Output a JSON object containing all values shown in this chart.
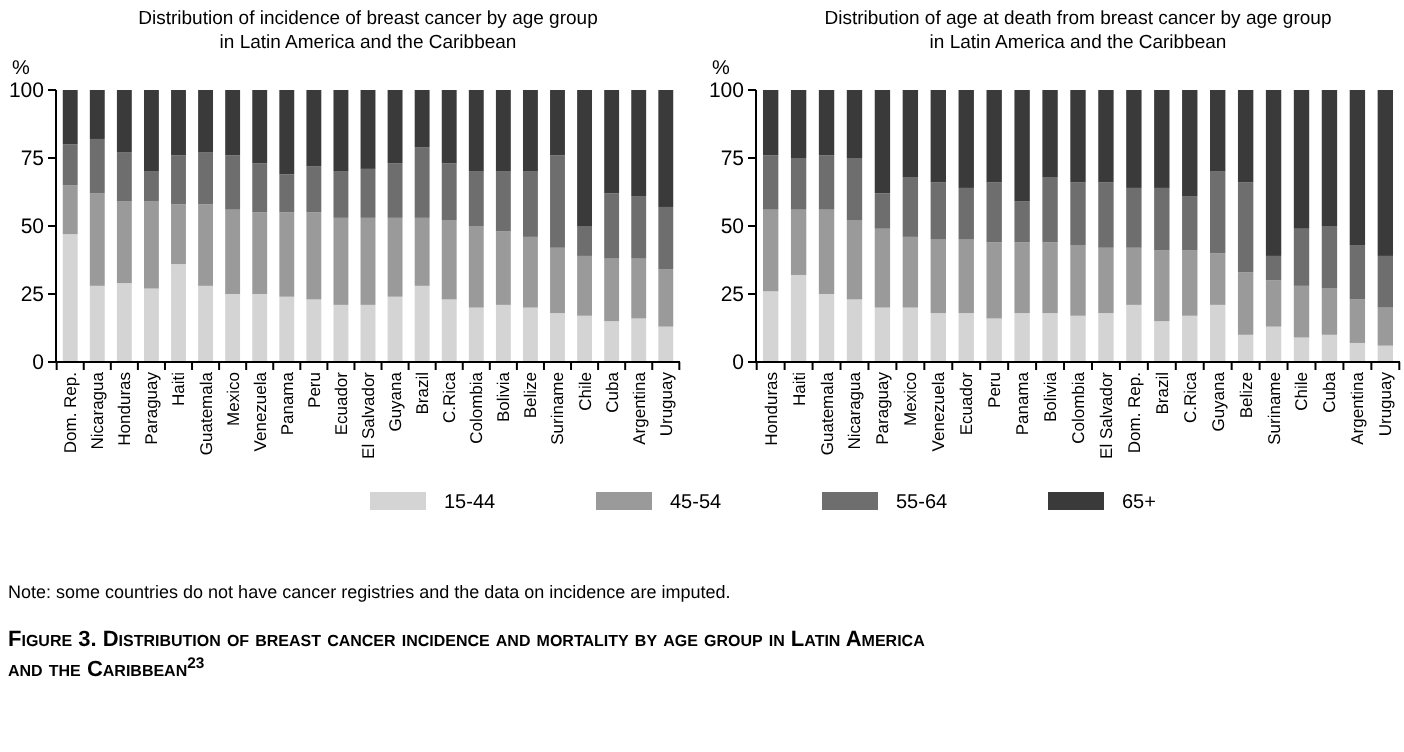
{
  "chart_data": [
    {
      "type": "bar",
      "stacked": true,
      "title": "Distribution of incidence of breast cancer by age group\nin Latin America and the Caribbean",
      "ylabel": "%",
      "ylim": [
        0,
        100
      ],
      "yticks": [
        0,
        25,
        50,
        75,
        100
      ],
      "legend": "bottom",
      "categories": [
        "Dom. Rep.",
        "Nicaragua",
        "Honduras",
        "Paraguay",
        "Haiti",
        "Guatemala",
        "Mexico",
        "Venezuela",
        "Panama",
        "Peru",
        "Ecuador",
        "El Salvador",
        "Guyana",
        "Brazil",
        "C.Rica",
        "Colombia",
        "Bolivia",
        "Belize",
        "Suriname",
        "Chile",
        "Cuba",
        "Argentina",
        "Uruguay"
      ],
      "series": [
        {
          "name": "15-44",
          "color": "#d4d4d4",
          "values": [
            47,
            28,
            29,
            27,
            36,
            28,
            25,
            25,
            24,
            23,
            21,
            21,
            24,
            28,
            23,
            20,
            21,
            20,
            18,
            17,
            15,
            16,
            13
          ]
        },
        {
          "name": "45-54",
          "color": "#9a9a9a",
          "values": [
            18,
            34,
            30,
            32,
            22,
            30,
            31,
            30,
            31,
            32,
            32,
            32,
            29,
            25,
            29,
            30,
            27,
            26,
            24,
            22,
            23,
            22,
            21
          ]
        },
        {
          "name": "55-64",
          "color": "#6e6e6e",
          "values": [
            15,
            20,
            18,
            11,
            18,
            19,
            20,
            18,
            14,
            17,
            17,
            18,
            20,
            26,
            21,
            20,
            22,
            24,
            34,
            11,
            24,
            23,
            23
          ]
        },
        {
          "name": "65+",
          "color": "#3a3a3a",
          "values": [
            20,
            18,
            23,
            30,
            24,
            23,
            24,
            27,
            31,
            28,
            30,
            29,
            27,
            21,
            27,
            30,
            30,
            30,
            24,
            50,
            38,
            39,
            43
          ]
        }
      ],
      "annotations": [
        "Note: some countries do not have cancer registries and the data on incidence are imputed.",
        "Figure 3. Distribution of breast cancer incidence and mortality by age group in Latin America and the Caribbean$^{23}$"
      ]
    },
    {
      "type": "bar",
      "stacked": true,
      "title": "Distribution of age at death from breast cancer by age group\nin Latin America and the Caribbean",
      "ylabel": "%",
      "ylim": [
        0,
        100
      ],
      "yticks": [
        0,
        25,
        50,
        75,
        100
      ],
      "categories": [
        "Honduras",
        "Haiti",
        "Guatemala",
        "Nicaragua",
        "Paraguay",
        "Mexico",
        "Venezuela",
        "Ecuador",
        "Peru",
        "Panama",
        "Bolivia",
        "Colombia",
        "El Salvador",
        "Dom. Rep.",
        "Brazil",
        "C.Rica",
        "Guyana",
        "Belize",
        "Suriname",
        "Chile",
        "Cuba",
        "Argentina",
        "Uruguay"
      ],
      "series": [
        {
          "color": "#d4d4d4",
          "values": [
            26,
            32,
            25,
            23,
            20,
            20,
            18,
            18,
            16,
            18,
            18,
            17,
            18,
            21,
            15,
            17,
            21,
            10,
            13,
            9,
            10,
            7,
            6
          ]
        },
        {
          "color": "#9a9a9a",
          "values": [
            30,
            24,
            31,
            29,
            29,
            26,
            27,
            27,
            28,
            26,
            26,
            26,
            24,
            21,
            26,
            24,
            19,
            23,
            17,
            19,
            17,
            16,
            14
          ]
        },
        {
          "color": "#6e6e6e",
          "values": [
            20,
            19,
            20,
            23,
            13,
            22,
            21,
            19,
            22,
            15,
            24,
            23,
            24,
            22,
            23,
            20,
            30,
            33,
            9,
            21,
            23,
            20,
            19
          ]
        },
        {
          "color": "#3a3a3a",
          "values": [
            24,
            25,
            24,
            25,
            38,
            32,
            34,
            36,
            34,
            41,
            32,
            34,
            34,
            36,
            36,
            39,
            30,
            34,
            61,
            51,
            50,
            57,
            61
          ]
        }
      ]
    }
  ]
}
